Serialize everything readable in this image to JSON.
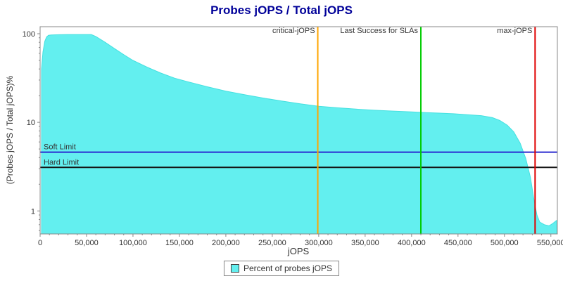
{
  "chart_data": {
    "type": "area",
    "title": "Probes jOPS / Total jOPS",
    "title_color": "#000099",
    "xlabel": "jOPS",
    "ylabel": "(Probes jOPS / Total jOPS)%",
    "xscale": "linear",
    "yscale": "log",
    "xlim": [
      0,
      557000
    ],
    "ylim": [
      0.55,
      120
    ],
    "grid": false,
    "x_ticks": [
      {
        "v": 0,
        "label": "0"
      },
      {
        "v": 50000,
        "label": "50,000"
      },
      {
        "v": 100000,
        "label": "100,000"
      },
      {
        "v": 150000,
        "label": "150,000"
      },
      {
        "v": 200000,
        "label": "200,000"
      },
      {
        "v": 250000,
        "label": "250,000"
      },
      {
        "v": 300000,
        "label": "300,000"
      },
      {
        "v": 350000,
        "label": "350,000"
      },
      {
        "v": 400000,
        "label": "400,000"
      },
      {
        "v": 450000,
        "label": "450,000"
      },
      {
        "v": 500000,
        "label": "500,000"
      },
      {
        "v": 550000,
        "label": "550,000"
      }
    ],
    "y_ticks": [
      {
        "v": 1,
        "label": "1"
      },
      {
        "v": 10,
        "label": "10"
      },
      {
        "v": 100,
        "label": "100"
      }
    ],
    "series": [
      {
        "name": "Percent of probes jOPS",
        "color": "#63efef",
        "stroke": "#45e0e0",
        "points": [
          [
            1500,
            40
          ],
          [
            3000,
            62
          ],
          [
            5000,
            82
          ],
          [
            7000,
            92
          ],
          [
            9000,
            96
          ],
          [
            12000,
            97
          ],
          [
            20000,
            97.5
          ],
          [
            30000,
            98
          ],
          [
            45000,
            98
          ],
          [
            55000,
            98
          ],
          [
            60000,
            93
          ],
          [
            70000,
            80
          ],
          [
            80000,
            68
          ],
          [
            90000,
            58
          ],
          [
            100000,
            50
          ],
          [
            115000,
            42
          ],
          [
            130000,
            36
          ],
          [
            145000,
            31.5
          ],
          [
            160000,
            28.5
          ],
          [
            180000,
            25.2
          ],
          [
            200000,
            22.5
          ],
          [
            220000,
            20.5
          ],
          [
            240000,
            18.8
          ],
          [
            260000,
            17.4
          ],
          [
            280000,
            16.2
          ],
          [
            300000,
            15.2
          ],
          [
            320000,
            14.6
          ],
          [
            340000,
            14.1
          ],
          [
            360000,
            13.7
          ],
          [
            380000,
            13.4
          ],
          [
            400000,
            13.1
          ],
          [
            415000,
            12.9
          ],
          [
            430000,
            12.7
          ],
          [
            445000,
            12.5
          ],
          [
            460000,
            12.2
          ],
          [
            475000,
            11.9
          ],
          [
            487000,
            11.3
          ],
          [
            495000,
            10.5
          ],
          [
            503000,
            9.3
          ],
          [
            510000,
            7.8
          ],
          [
            517000,
            5.8
          ],
          [
            523000,
            3.9
          ],
          [
            528000,
            2.4
          ],
          [
            532000,
            1.3
          ],
          [
            535000,
            0.9
          ],
          [
            538000,
            0.75
          ],
          [
            543000,
            0.7
          ],
          [
            548000,
            0.68
          ],
          [
            552000,
            0.72
          ],
          [
            556000,
            0.78
          ]
        ]
      }
    ],
    "vertical_markers": [
      {
        "label": "critical-jOPS",
        "x": 299000,
        "color": "#ffa500"
      },
      {
        "label": "Last Success for SLAs",
        "x": 410000,
        "color": "#00cc00"
      },
      {
        "label": "max-jOPS",
        "x": 533000,
        "color": "#e00000"
      }
    ],
    "horizontal_markers": [
      {
        "label": "Soft Limit",
        "y": 4.6,
        "color": "#2a2ad0"
      },
      {
        "label": "Hard Limit",
        "y": 3.1,
        "color": "#151515"
      }
    ],
    "legend": {
      "position": "bottom",
      "items": [
        {
          "label": "Percent of probes jOPS",
          "color": "#63efef"
        }
      ]
    }
  }
}
